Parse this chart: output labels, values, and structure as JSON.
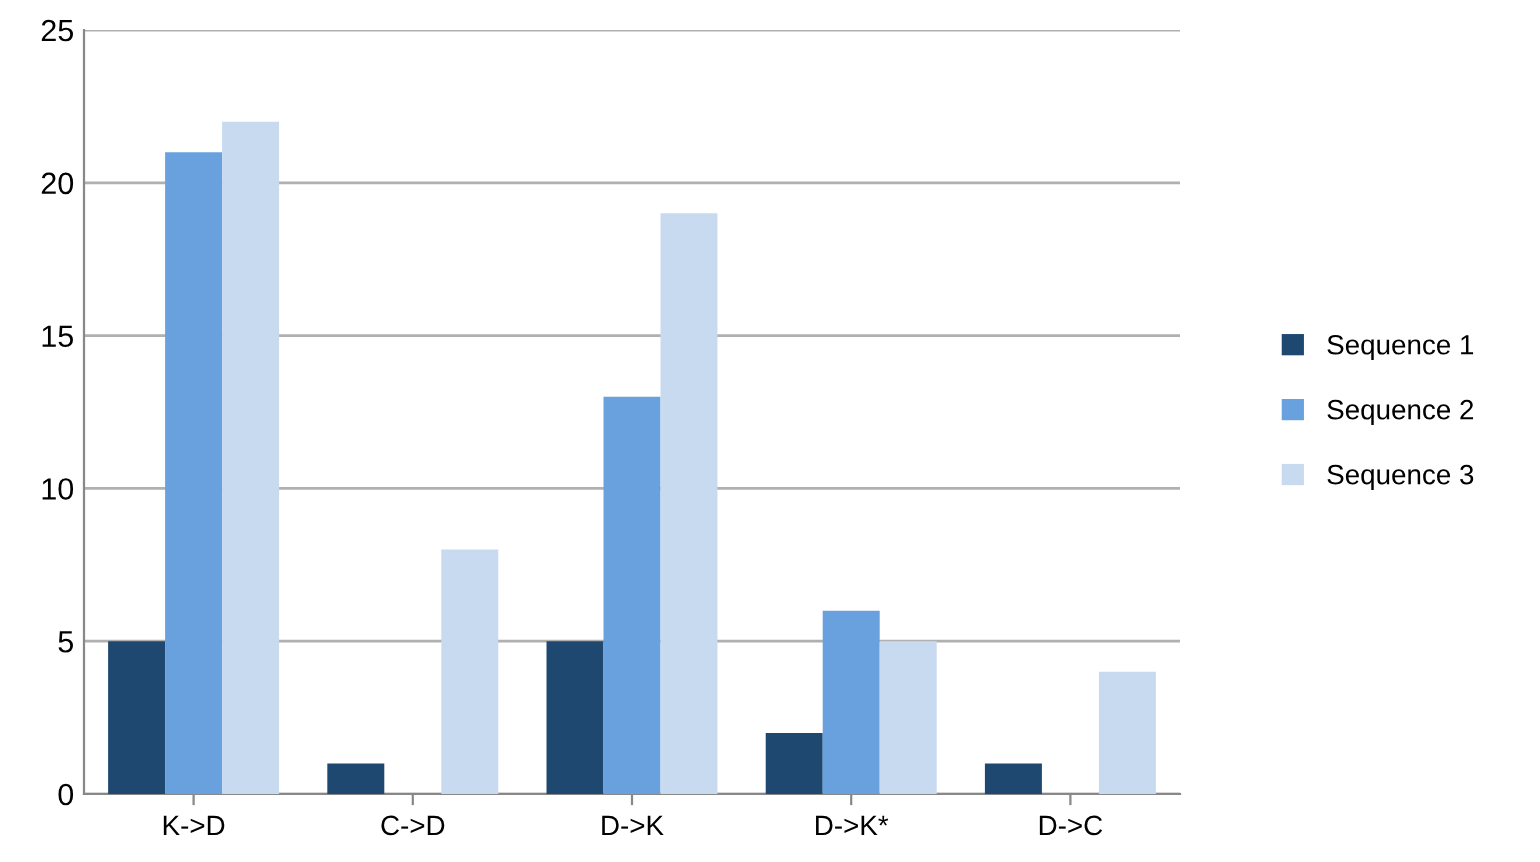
{
  "chart_data": {
    "type": "bar",
    "categories": [
      "K->D",
      "C->D",
      "D->K",
      "D->K*",
      "D->C"
    ],
    "series": [
      {
        "name": "Sequence 1",
        "color": "#1f4870",
        "values": [
          5,
          1,
          5,
          2,
          1
        ]
      },
      {
        "name": "Sequence 2",
        "color": "#68a1dd",
        "values": [
          21,
          0,
          13,
          6,
          0
        ]
      },
      {
        "name": "Sequence 3",
        "color": "#c8daf0",
        "values": [
          22,
          8,
          19,
          5,
          4
        ]
      }
    ],
    "ylim": [
      0,
      25
    ],
    "yticks": [
      0,
      5,
      10,
      15,
      20,
      25
    ],
    "grid": "y",
    "legend": "right"
  }
}
